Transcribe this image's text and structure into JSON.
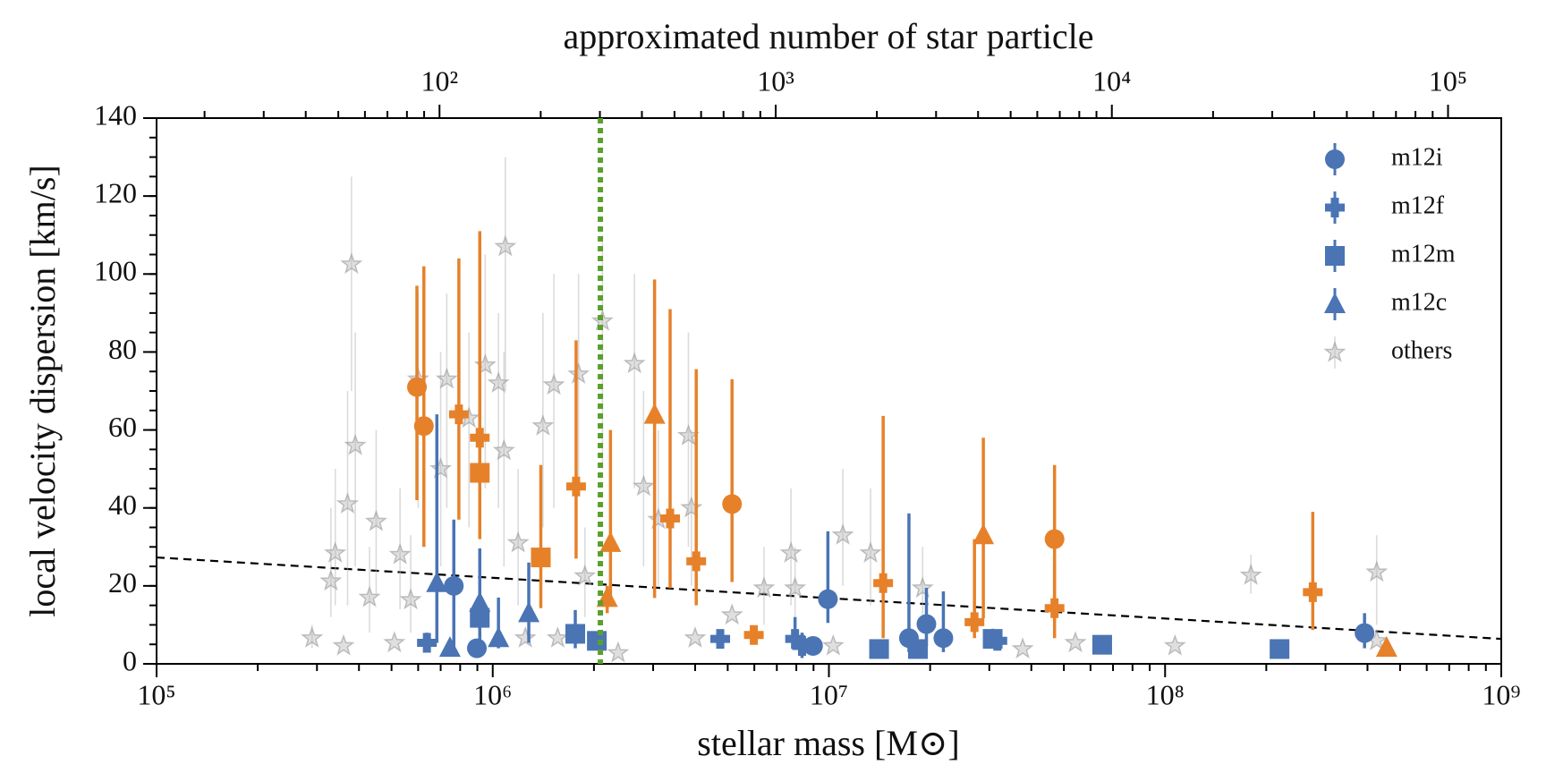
{
  "chart_data": {
    "type": "scatter",
    "xlabel": "stellar mass [M⊙]",
    "ylabel": "local velocity dispersion [km/s]",
    "x2label": "approximated number of star particle",
    "xscale": "log",
    "x2scale": "log",
    "xlim": [
      100000,
      1000000000
    ],
    "xticks": [
      {
        "value": 100000,
        "label": "10⁵"
      },
      {
        "value": 1000000,
        "label": "10⁶"
      },
      {
        "value": 10000000,
        "label": "10⁷"
      },
      {
        "value": 100000000,
        "label": "10⁸"
      },
      {
        "value": 1000000000,
        "label": "10⁹"
      }
    ],
    "x2lim": [
      14.4,
      144000
    ],
    "x2ticks": [
      {
        "value": 100,
        "label": "10²"
      },
      {
        "value": 1000,
        "label": "10³"
      },
      {
        "value": 10000,
        "label": "10⁴"
      },
      {
        "value": 100000,
        "label": "10⁵"
      }
    ],
    "ylim": [
      0,
      140
    ],
    "yticks": [
      0,
      20,
      40,
      60,
      80,
      100,
      120,
      140
    ],
    "legend": "upper right",
    "threshold_x": 2090000,
    "threshold_color": "#5aa02c",
    "fit_line": {
      "x": [
        100000,
        1000000000
      ],
      "values": [
        27.3,
        6.4
      ]
    },
    "series": [
      {
        "name": "m12i",
        "marker": "circle",
        "color": "#4a74b4",
        "x": [
          595000,
          624000,
          5150000,
          46900000,
          766000,
          897000,
          9930000,
          8970000,
          17300000,
          19500000,
          21900000,
          392000000
        ],
        "values": [
          71,
          61,
          41,
          32,
          20,
          4,
          16.6,
          4.6,
          6.6,
          10.2,
          6.6,
          7.9
        ],
        "lower": [
          42,
          30,
          21,
          13,
          4,
          null,
          10.5,
          null,
          3,
          4.6,
          3,
          4
        ],
        "upper": [
          97,
          102,
          73,
          51,
          37,
          null,
          34,
          null,
          38.6,
          19.5,
          18.6,
          13
        ],
        "colors": [
          "#e6812a",
          "#e6812a",
          "#e6812a",
          "#e6812a",
          "#4a74b4",
          "#4a74b4",
          "#4a74b4",
          "#4a74b4",
          "#4a74b4",
          "#4a74b4",
          "#4a74b4",
          "#4a74b4"
        ]
      },
      {
        "name": "m12f",
        "marker": "plus",
        "color": "#4a74b4",
        "x": [
          793000,
          915000,
          1770000,
          3370000,
          4030000,
          5980000,
          14500000,
          27100000,
          46900000,
          275000000,
          637000,
          4750000,
          7930000,
          8320000,
          31700000
        ],
        "values": [
          64,
          58,
          45.5,
          37.3,
          26.3,
          7.4,
          20.7,
          10.7,
          14.3,
          18.4,
          5.4,
          6.4,
          6.4,
          4.6,
          5.9
        ],
        "lower": [
          37,
          32,
          27,
          19.4,
          15,
          null,
          6.6,
          6.6,
          6.6,
          8.7,
          3,
          null,
          4,
          1.5,
          null
        ],
        "upper": [
          104,
          111,
          83,
          91,
          75.6,
          null,
          63.6,
          32,
          25.8,
          39,
          8,
          null,
          12,
          8,
          null
        ],
        "colors": [
          "#e6812a",
          "#e6812a",
          "#e6812a",
          "#e6812a",
          "#e6812a",
          "#e6812a",
          "#e6812a",
          "#e6812a",
          "#e6812a",
          "#e6812a",
          "#4a74b4",
          "#4a74b4",
          "#4a74b4",
          "#4a74b4",
          "#4a74b4"
        ]
      },
      {
        "name": "m12m",
        "marker": "square",
        "color": "#4a74b4",
        "x": [
          915000,
          1390000,
          915000,
          1760000,
          2040000,
          14100000,
          18400000,
          30700000,
          65000000,
          219000000
        ],
        "values": [
          49,
          27.3,
          11.8,
          7.7,
          5.9,
          3.8,
          3.8,
          6.4,
          4.9,
          3.8
        ],
        "lower": [
          38,
          14.3,
          4,
          4,
          null,
          null,
          null,
          4,
          null,
          null
        ],
        "upper": [
          58,
          51,
          29.6,
          13.8,
          null,
          null,
          null,
          9,
          null,
          null
        ],
        "colors": [
          "#e6812a",
          "#e6812a",
          "#4a74b4",
          "#4a74b4",
          "#4a74b4",
          "#4a74b4",
          "#4a74b4",
          "#4a74b4",
          "#4a74b4",
          "#4a74b4"
        ]
      },
      {
        "name": "m12c",
        "marker": "triangle",
        "color": "#4a74b4",
        "x": [
          3030000,
          2240000,
          2190000,
          28800000,
          456000000,
          682000,
          746000,
          915000,
          1040000,
          1280000
        ],
        "values": [
          63.9,
          31,
          16.9,
          33,
          4.1,
          20.7,
          4.1,
          15.6,
          6.6,
          13
        ],
        "lower": [
          16.9,
          17,
          13,
          11.7,
          null,
          5.4,
          null,
          5.4,
          4,
          5.4
        ],
        "upper": [
          98.6,
          60,
          20,
          58,
          null,
          64,
          null,
          28.4,
          17,
          26
        ],
        "colors": [
          "#e6812a",
          "#e6812a",
          "#e6812a",
          "#e6812a",
          "#e6812a",
          "#4a74b4",
          "#4a74b4",
          "#4a74b4",
          "#4a74b4",
          "#4a74b4"
        ]
      },
      {
        "name": "others",
        "marker": "star",
        "color": "#b8b8b8",
        "x": [
          290000,
          330000,
          340000,
          360000,
          380000,
          370000,
          390000,
          430000,
          450000,
          510000,
          530000,
          570000,
          600000,
          700000,
          730000,
          850000,
          950000,
          1040000,
          1090000,
          1080000,
          1190000,
          1250000,
          1410000,
          1520000,
          1560000,
          1800000,
          1880000,
          2120000,
          2360000,
          2640000,
          2810000,
          3110000,
          3820000,
          3900000,
          4000000,
          5150000,
          6410000,
          7710000,
          7930000,
          10300000,
          11000000,
          13300000,
          19000000,
          37700000,
          54100000,
          107000000,
          180000000,
          426000000,
          426000000
        ],
        "values": [
          6.6,
          21.2,
          28.4,
          4.6,
          102.5,
          41,
          56,
          17,
          36.5,
          5.4,
          28,
          16.4,
          73,
          50,
          73,
          63,
          76.6,
          72,
          107,
          54.7,
          31,
          6.6,
          61,
          71.5,
          6.6,
          74.3,
          22.5,
          87.9,
          2.8,
          77,
          45.5,
          37,
          58.5,
          40,
          6.6,
          12.5,
          19.4,
          28.4,
          19.4,
          4.6,
          33,
          28.4,
          19.4,
          3.8,
          5.4,
          4.6,
          22.7,
          23.5,
          5.9
        ],
        "lower": [
          4,
          12,
          15,
          null,
          70,
          15,
          25,
          8,
          18,
          null,
          14,
          8,
          40,
          25,
          40,
          35,
          45,
          40,
          70,
          25,
          15,
          null,
          35,
          40,
          null,
          45,
          12,
          50,
          null,
          45,
          25,
          20,
          30,
          20,
          null,
          null,
          10,
          15,
          10,
          null,
          20,
          15,
          10,
          null,
          null,
          null,
          18,
          10,
          null
        ],
        "upper": [
          10,
          40,
          50,
          null,
          125,
          70,
          85,
          30,
          60,
          null,
          45,
          33,
          95,
          80,
          95,
          85,
          105,
          90,
          130,
          80,
          50,
          null,
          90,
          100,
          null,
          100,
          35,
          110,
          null,
          100,
          70,
          60,
          85,
          60,
          null,
          null,
          30,
          45,
          30,
          null,
          50,
          45,
          30,
          null,
          null,
          null,
          28,
          33,
          null
        ]
      }
    ]
  }
}
